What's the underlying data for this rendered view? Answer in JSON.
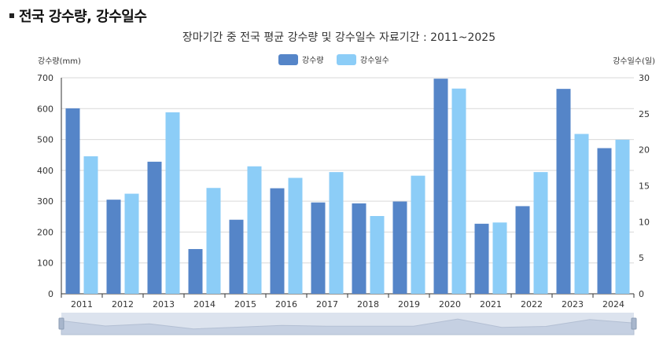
{
  "page": {
    "section_title": "전국 강수량, 강수일수"
  },
  "colors": {
    "rainfall": "#5585c8",
    "rain_days": "#8ccdf7",
    "grid": "#d9d9d9",
    "slider_bg": "#dce3ee",
    "slider_area": "#c5d0e2"
  },
  "chart_data": {
    "type": "bar",
    "title": "장마기간 중 전국 평균 강수량 및 강수일수 자료기간 : 2011~2025",
    "xlabel": "",
    "ylabel": "강수량(mm)",
    "y2label": "강수일수(일)",
    "ylim": [
      0,
      700
    ],
    "y2lim": [
      0,
      30
    ],
    "yticks": [
      0,
      100,
      200,
      300,
      400,
      500,
      600,
      700
    ],
    "y2ticks": [
      0,
      5,
      10,
      15,
      20,
      25,
      30
    ],
    "grid": true,
    "legend_position": "top-center",
    "categories": [
      "2011",
      "2012",
      "2013",
      "2014",
      "2015",
      "2016",
      "2017",
      "2018",
      "2019",
      "2020",
      "2021",
      "2022",
      "2023",
      "2024"
    ],
    "series": [
      {
        "name": "강수량",
        "axis": "left",
        "color": "#5585c8",
        "values": [
          601,
          305,
          428,
          145,
          240,
          342,
          296,
          293,
          299,
          697,
          227,
          284,
          664,
          472
        ]
      },
      {
        "name": "강수일수",
        "axis": "right",
        "color": "#8ccdf7",
        "values": [
          19.1,
          13.9,
          25.2,
          14.7,
          17.7,
          16.1,
          16.9,
          10.8,
          16.4,
          28.5,
          9.9,
          16.9,
          22.2,
          21.4
        ]
      }
    ]
  }
}
